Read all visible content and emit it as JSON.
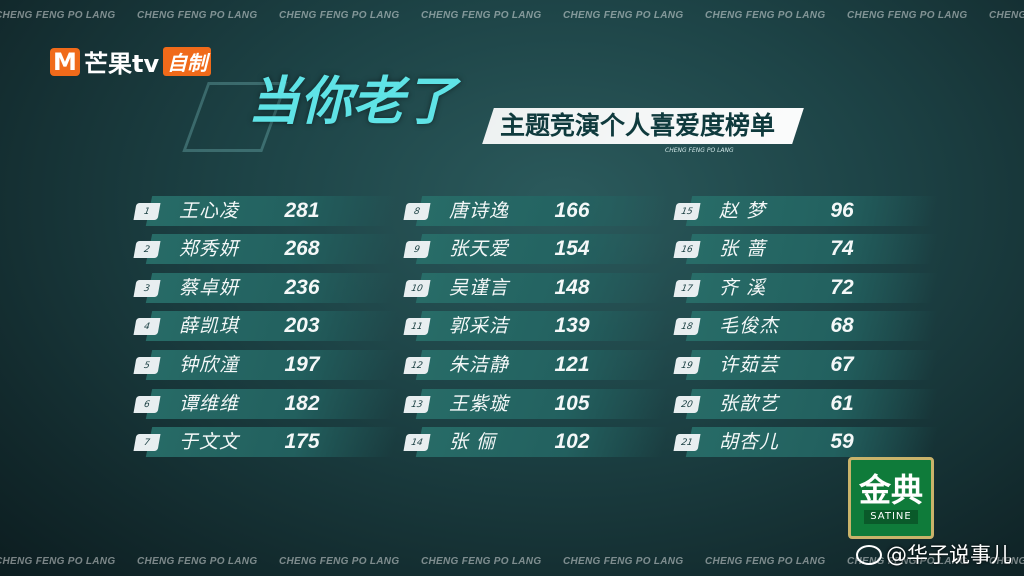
{
  "watermark": "CHENG FENG PO LANG",
  "logo": {
    "icon": "M",
    "brand": "芒果tv",
    "badge": "自制"
  },
  "title": "当你老了",
  "subtitle": "主题竞演个人喜爱度榜单",
  "subtitle_small": "CHENG FENG PO LANG",
  "ranking": [
    {
      "rank": "1",
      "name": "王心凌",
      "score": "281"
    },
    {
      "rank": "2",
      "name": "郑秀妍",
      "score": "268"
    },
    {
      "rank": "3",
      "name": "蔡卓妍",
      "score": "236"
    },
    {
      "rank": "4",
      "name": "薛凯琪",
      "score": "203"
    },
    {
      "rank": "5",
      "name": "钟欣潼",
      "score": "197"
    },
    {
      "rank": "6",
      "name": "谭维维",
      "score": "182"
    },
    {
      "rank": "7",
      "name": "于文文",
      "score": "175"
    },
    {
      "rank": "8",
      "name": "唐诗逸",
      "score": "166"
    },
    {
      "rank": "9",
      "name": "张天爱",
      "score": "154"
    },
    {
      "rank": "10",
      "name": "吴谨言",
      "score": "148"
    },
    {
      "rank": "11",
      "name": "郭采洁",
      "score": "139"
    },
    {
      "rank": "12",
      "name": "朱洁静",
      "score": "121"
    },
    {
      "rank": "13",
      "name": "王紫璇",
      "score": "105"
    },
    {
      "rank": "14",
      "name": "张 俪",
      "score": "102"
    },
    {
      "rank": "15",
      "name": "赵 梦",
      "score": "96"
    },
    {
      "rank": "16",
      "name": "张 蔷",
      "score": "74"
    },
    {
      "rank": "17",
      "name": "齐 溪",
      "score": "72"
    },
    {
      "rank": "18",
      "name": "毛俊杰",
      "score": "68"
    },
    {
      "rank": "19",
      "name": "许茹芸",
      "score": "67"
    },
    {
      "rank": "20",
      "name": "张歆艺",
      "score": "61"
    },
    {
      "rank": "21",
      "name": "胡杏儿",
      "score": "59"
    }
  ],
  "sponsor": {
    "name": "金典",
    "sub": "SATINE"
  },
  "weibo": "@华子说事儿",
  "colors": {
    "accent": "#5fe3e6",
    "brand": "#f06a1a",
    "sponsor": "#0f7b3a"
  }
}
